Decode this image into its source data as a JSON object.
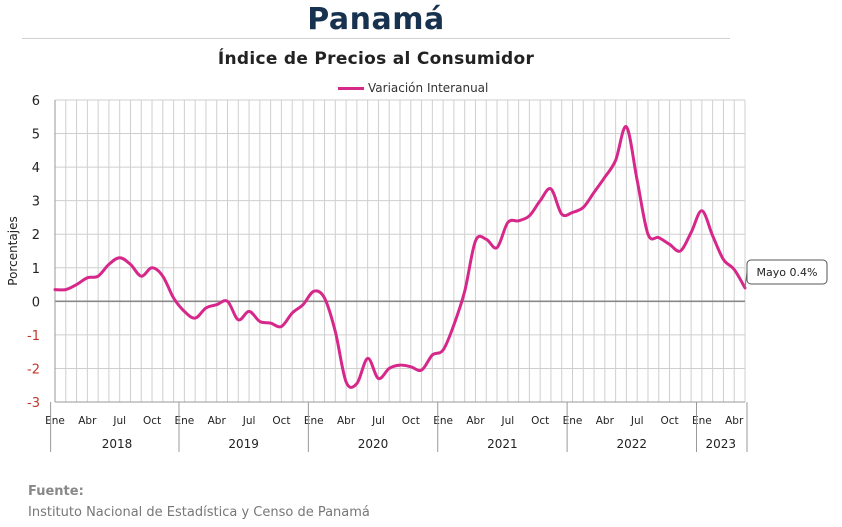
{
  "title": "Panamá",
  "subtitle": "Índice de Precios al Consumidor",
  "legend_label": "Variación Interanual",
  "source_label": "Fuente:",
  "source_text": "Instituto Nacional de Estadística y Censo de Panamá",
  "colors": {
    "series": "#d6288a",
    "title": "#17324f",
    "negative_ticks": "#c0392b"
  },
  "chart_data": {
    "type": "line",
    "ylabel": "Porcentajes",
    "ylim": [
      -3,
      6
    ],
    "yticks": [
      6,
      5,
      4,
      3,
      2,
      1,
      0,
      -1,
      -2,
      -3
    ],
    "grid": true,
    "month_ticks": [
      "Ene",
      "Abr",
      "Jul",
      "Oct"
    ],
    "years": [
      "2018",
      "2019",
      "2020",
      "2021",
      "2022",
      "2023"
    ],
    "months_in_last_year": 5,
    "x_start": "2018-01",
    "series": [
      {
        "name": "Variación Interanual",
        "values": [
          0.35,
          0.35,
          0.5,
          0.7,
          0.75,
          1.1,
          1.3,
          1.1,
          0.75,
          1.0,
          0.75,
          0.1,
          -0.3,
          -0.5,
          -0.2,
          -0.1,
          0.0,
          -0.55,
          -0.3,
          -0.6,
          -0.65,
          -0.75,
          -0.35,
          -0.1,
          0.3,
          0.1,
          -0.9,
          -2.4,
          -2.45,
          -1.7,
          -2.3,
          -2.0,
          -1.9,
          -1.95,
          -2.05,
          -1.6,
          -1.45,
          -0.7,
          0.3,
          1.8,
          1.85,
          1.6,
          2.35,
          2.4,
          2.55,
          3.0,
          3.35,
          2.6,
          2.65,
          2.8,
          3.25,
          3.7,
          4.2,
          5.2,
          3.6,
          2.0,
          1.9,
          1.7,
          1.5,
          2.05,
          2.7,
          1.95,
          1.25,
          0.95,
          0.4
        ]
      }
    ],
    "annotation": "Mayo 0.4%"
  }
}
